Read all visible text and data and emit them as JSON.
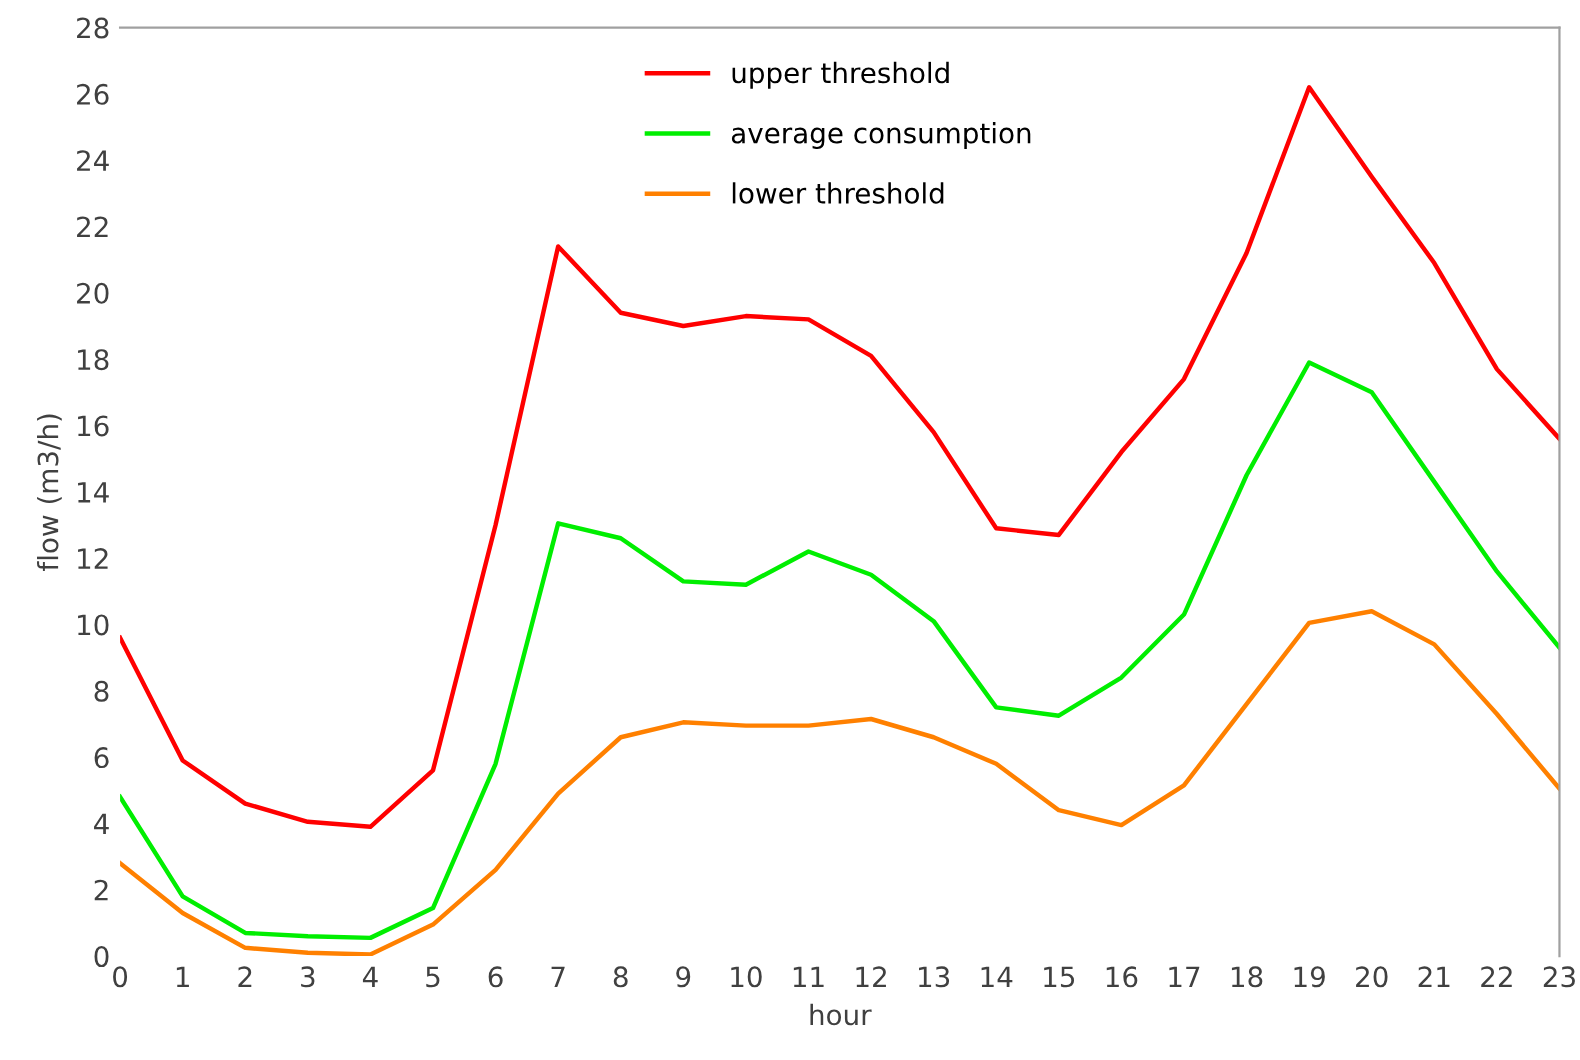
{
  "chart_data": {
    "type": "line",
    "xlabel": "hour",
    "ylabel": "flow (m3/h)",
    "x": [
      0,
      1,
      2,
      3,
      4,
      5,
      6,
      7,
      8,
      9,
      10,
      11,
      12,
      13,
      14,
      15,
      16,
      17,
      18,
      19,
      20,
      21,
      22,
      23
    ],
    "xlim": [
      0,
      23
    ],
    "xticks": [
      0,
      1,
      2,
      3,
      4,
      5,
      6,
      7,
      8,
      9,
      10,
      11,
      12,
      13,
      14,
      15,
      16,
      17,
      18,
      19,
      20,
      21,
      22,
      23
    ],
    "ylim": [
      0,
      28
    ],
    "yticks": [
      0,
      2,
      4,
      6,
      8,
      10,
      12,
      14,
      16,
      18,
      20,
      22,
      24,
      26,
      28
    ],
    "grid": false,
    "legend": "top",
    "marker": "none",
    "line_style": "solid",
    "series": [
      {
        "name": "upper threshold",
        "color": "#ff0000",
        "values": [
          9.6,
          5.9,
          4.6,
          4.05,
          3.9,
          5.6,
          13,
          21.4,
          19.4,
          19.0,
          19.3,
          19.2,
          18.1,
          15.8,
          12.9,
          12.7,
          15.2,
          17.4,
          21.2,
          26.2,
          23.5,
          20.9,
          17.7,
          15.6
        ]
      },
      {
        "name": "average consumption",
        "color": "#00ee00",
        "values": [
          4.8,
          1.8,
          0.7,
          0.6,
          0.55,
          1.45,
          5.8,
          13.05,
          12.6,
          11.3,
          11.2,
          12.2,
          11.5,
          10.1,
          7.5,
          7.25,
          8.4,
          10.3,
          14.5,
          17.9,
          17.0,
          14.3,
          11.6,
          9.3
        ]
      },
      {
        "name": "lower threshold",
        "color": "#ff8000",
        "values": [
          2.8,
          1.3,
          0.25,
          0.1,
          0.05,
          0.95,
          2.6,
          4.9,
          6.6,
          7.05,
          6.95,
          6.95,
          7.15,
          6.6,
          5.8,
          4.4,
          3.95,
          5.15,
          7.6,
          10.05,
          10.4,
          9.4,
          7.3,
          5.05
        ]
      }
    ]
  }
}
